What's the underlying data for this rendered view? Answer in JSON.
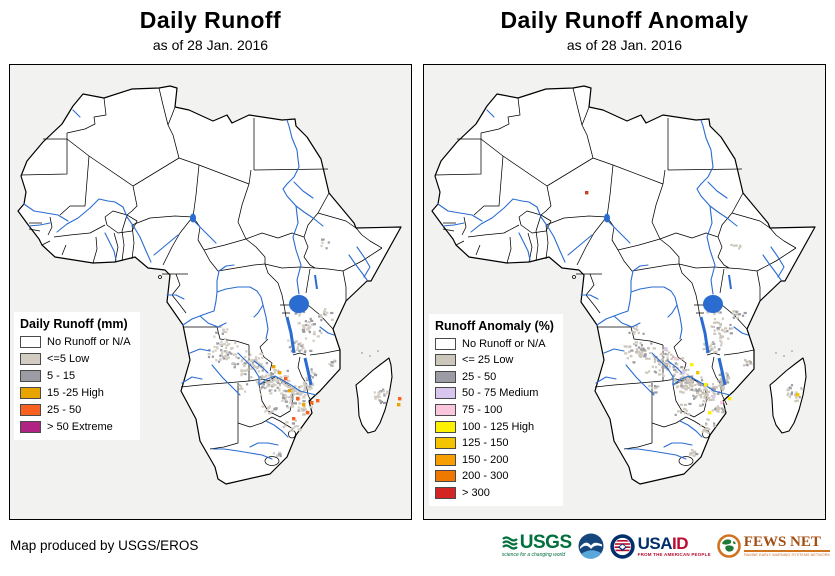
{
  "header": {
    "left": {
      "title": "Daily Runoff",
      "subtitle": "as of 28 Jan. 2016"
    },
    "right": {
      "title": "Daily Runoff Anomaly",
      "subtitle": "as of 28 Jan. 2016"
    }
  },
  "legends": {
    "left": {
      "title": "Daily Runoff (mm)",
      "items": [
        {
          "label": "No Runoff or N/A",
          "color": "#ffffff"
        },
        {
          "label": "<=5 Low",
          "color": "#d2ccc2"
        },
        {
          "label": "5 - 15",
          "color": "#9c9ca4"
        },
        {
          "label": "15 -25 High",
          "color": "#e8a400"
        },
        {
          "label": "25 - 50",
          "color": "#f8611f"
        },
        {
          "label": "> 50 Extreme",
          "color": "#b12383"
        }
      ]
    },
    "right": {
      "title": "Runoff Anomaly (%)",
      "items": [
        {
          "label": "No Runoff or N/A",
          "color": "#ffffff"
        },
        {
          "label": "<= 25 Low",
          "color": "#cdc6bb"
        },
        {
          "label": "25 - 50",
          "color": "#9c9ca4"
        },
        {
          "label": "50 - 75 Medium",
          "color": "#d9c6ee"
        },
        {
          "label": "75 - 100",
          "color": "#f9c6de"
        },
        {
          "label": "100 - 125 High",
          "color": "#fdf100"
        },
        {
          "label": "125 - 150",
          "color": "#f5c400"
        },
        {
          "label": "150 - 200",
          "color": "#f79f00"
        },
        {
          "label": "200 - 300",
          "color": "#ef7900"
        },
        {
          "label": "> 300",
          "color": "#d42423"
        }
      ]
    }
  },
  "map_style": {
    "ocean": "#f2f2f0",
    "land": "#ffffff",
    "border": "#000000",
    "water": "#2a6cd0"
  },
  "footer": {
    "credit": "Map produced by USGS/EROS",
    "logos": {
      "usgs": {
        "name": "USGS",
        "tagline": "science for a changing world",
        "green": "#00703c"
      },
      "noaa": {
        "name": "NOAA"
      },
      "usaid": {
        "name_part1": "USA",
        "name_part2": "ID",
        "tagline": "FROM THE AMERICAN PEOPLE",
        "blue": "#002f6c",
        "red": "#ba0c2f"
      },
      "fewsnet": {
        "name": "FEWS NET",
        "tagline": "FAMINE EARLY WARNING SYSTEMS NETWORK",
        "orange": "#d17420",
        "text_color": "#a34e13"
      }
    }
  }
}
